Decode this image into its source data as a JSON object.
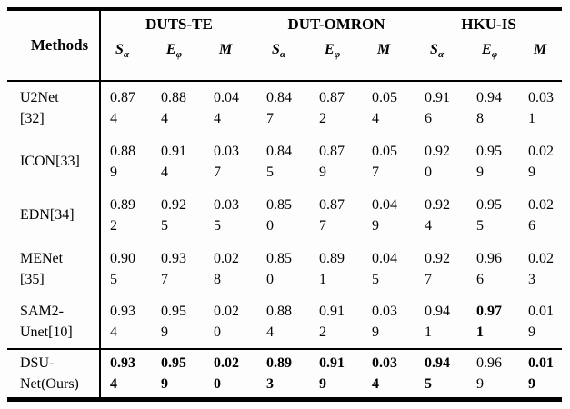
{
  "page": {
    "background": "#fdfdfd",
    "text_color": "#000000",
    "rule_color": "#000000"
  },
  "table": {
    "corner_header": "Methods",
    "dataset_headers": [
      "DUTS-TE",
      "DUT-OMRON",
      "HKU-IS"
    ],
    "metric_headers": [
      {
        "base": "S",
        "sub": "α"
      },
      {
        "base": "E",
        "sub": "φ"
      },
      {
        "base": "M",
        "sub": ""
      }
    ],
    "rows": [
      {
        "method": "U2Net [32]",
        "values": [
          "0.874",
          "0.884",
          "0.044",
          "0.847",
          "0.872",
          "0.054",
          "0.916",
          "0.948",
          "0.031"
        ],
        "bold": [
          false,
          false,
          false,
          false,
          false,
          false,
          false,
          false,
          false
        ]
      },
      {
        "method": "ICON[33]",
        "values": [
          "0.889",
          "0.914",
          "0.037",
          "0.845",
          "0.879",
          "0.057",
          "0.920",
          "0.959",
          "0.029"
        ],
        "bold": [
          false,
          false,
          false,
          false,
          false,
          false,
          false,
          false,
          false
        ]
      },
      {
        "method": "EDN[34]",
        "values": [
          "0.892",
          "0.925",
          "0.035",
          "0.850",
          "0.877",
          "0.049",
          "0.924",
          "0.955",
          "0.026"
        ],
        "bold": [
          false,
          false,
          false,
          false,
          false,
          false,
          false,
          false,
          false
        ]
      },
      {
        "method": "MENet [35]",
        "values": [
          "0.905",
          "0.937",
          "0.028",
          "0.850",
          "0.891",
          "0.045",
          "0.927",
          "0.966",
          "0.023"
        ],
        "bold": [
          false,
          false,
          false,
          false,
          false,
          false,
          false,
          false,
          false
        ]
      },
      {
        "method": "SAM2-Unet[10]",
        "values": [
          "0.934",
          "0.959",
          "0.020",
          "0.884",
          "0.912",
          "0.039",
          "0.941",
          "0.971",
          "0.019"
        ],
        "bold": [
          false,
          false,
          false,
          false,
          false,
          false,
          false,
          true,
          false
        ]
      },
      {
        "method": "DSU-Net(Ours)",
        "values": [
          "0.934",
          "0.959",
          "0.020",
          "0.893",
          "0.919",
          "0.034",
          "0.945",
          "0.969",
          "0.019"
        ],
        "bold": [
          true,
          true,
          true,
          true,
          true,
          true,
          true,
          false,
          true
        ]
      }
    ]
  }
}
